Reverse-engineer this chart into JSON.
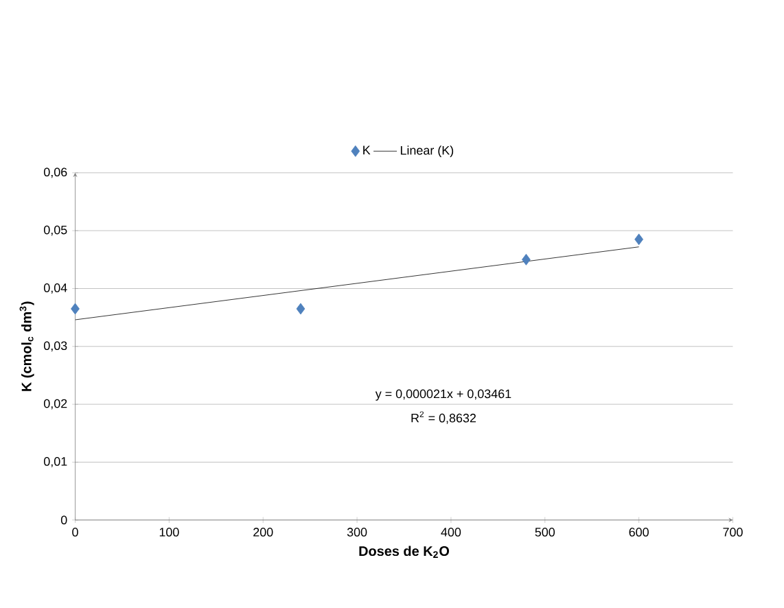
{
  "chart_data": {
    "type": "scatter",
    "xlabel": "Doses de K$_{2}$O",
    "ylabel": "K (cmol$_{c}$ dm$^{3}$)",
    "series": [
      {
        "name": "K",
        "type": "scatter",
        "color": "#4f81bd",
        "marker": "diamond",
        "x": [
          0,
          240,
          480,
          600
        ],
        "values": [
          0.0365,
          0.0365,
          0.045,
          0.0485
        ]
      },
      {
        "name": "Linear (K)",
        "type": "line",
        "color": "#000000",
        "marker": "none",
        "line_style": "solid",
        "x": [
          0,
          600
        ],
        "values": [
          0.0346,
          0.0472
        ]
      }
    ],
    "xlim": [
      0,
      700
    ],
    "xticks": [
      0,
      100,
      200,
      300,
      400,
      500,
      600,
      700
    ],
    "ylim": [
      0,
      0.06
    ],
    "yticks": [
      0,
      {
        "value": 0.01,
        "label": "0,01"
      },
      {
        "value": 0.02,
        "label": "0,02"
      },
      {
        "value": 0.03,
        "label": "0,03"
      },
      {
        "value": 0.04,
        "label": "0,04"
      },
      {
        "value": 0.05,
        "label": "0,05"
      },
      {
        "value": 0.06,
        "label": "0,06"
      }
    ],
    "grid": "y",
    "legend": "top",
    "annotations": [
      "y = 0,000021x + 0,03461",
      "R$^{2}$ = 0,8632"
    ]
  }
}
